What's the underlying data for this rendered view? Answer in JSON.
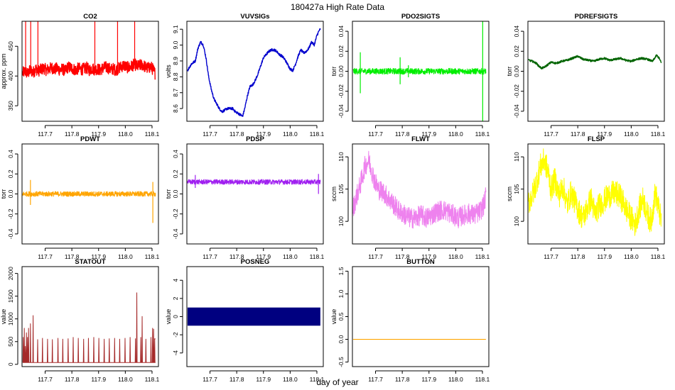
{
  "figure": {
    "suptitle": "180427a   High Rate Data",
    "xlabel": "day of year",
    "xticks": [
      117.7,
      117.8,
      117.9,
      118.0,
      118.1
    ],
    "xtick_labels": [
      "117.7",
      "117.8",
      "117.9",
      "118.0",
      "118.1"
    ],
    "xlim": [
      117.6135,
      118.124
    ]
  },
  "chart_data": [
    {
      "id": "co2",
      "type": "line",
      "title": "CO2",
      "ylabel": "approx. ppm",
      "ylim": [
        324,
        492
      ],
      "yticks": [
        350,
        400,
        450
      ],
      "ytick_labels": [
        "350",
        "400",
        "450"
      ],
      "color": "#ff0000",
      "series": [
        {
          "name": "CO2",
          "x": [
            117.616,
            117.625,
            117.635,
            117.645,
            117.655,
            117.665,
            117.675,
            117.685,
            117.695,
            117.705,
            117.715,
            117.725,
            117.735,
            117.745,
            117.755,
            117.765,
            117.775,
            117.785,
            117.795,
            117.805,
            117.815,
            117.825,
            117.835,
            117.845,
            117.855,
            117.865,
            117.875,
            117.885,
            117.895,
            117.905,
            117.915,
            117.925,
            117.935,
            117.945,
            117.955,
            117.965,
            117.975,
            117.985,
            117.995,
            118.005,
            118.015,
            118.025,
            118.035,
            118.045,
            118.055,
            118.065,
            118.075,
            118.085,
            118.095,
            118.105,
            118.112
          ],
          "values": [
            405,
            408,
            404,
            410,
            406,
            412,
            409,
            411,
            413,
            410,
            412,
            414,
            411,
            413,
            410,
            412,
            408,
            415,
            414,
            412,
            410,
            413,
            411,
            412,
            414,
            410,
            413,
            411,
            412,
            410,
            413,
            415,
            414,
            411,
            412,
            410,
            413,
            416,
            418,
            415,
            414,
            417,
            420,
            416,
            418,
            419,
            415,
            413,
            416,
            410,
            404
          ]
        }
      ],
      "noise": 10,
      "spikes": [
        {
          "x": 117.627,
          "y": 492
        },
        {
          "x": 117.646,
          "y": 492
        },
        {
          "x": 117.673,
          "y": 492
        },
        {
          "x": 117.886,
          "y": 492
        },
        {
          "x": 117.971,
          "y": 492
        },
        {
          "x": 118.035,
          "y": 492
        }
      ]
    },
    {
      "id": "vuvsigs",
      "type": "line",
      "title": "VUVSIGs",
      "ylabel": "volts",
      "ylim": [
        8.52,
        9.15
      ],
      "yticks": [
        8.6,
        8.7,
        8.8,
        8.9,
        9.0,
        9.1
      ],
      "ytick_labels": [
        "8.6",
        "8.7",
        "8.8",
        "8.9",
        "9.0",
        "9.1"
      ],
      "color": "#0000cd",
      "series": [
        {
          "name": "VUVSIGs",
          "x": [
            117.616,
            117.63,
            117.645,
            117.655,
            117.665,
            117.675,
            117.685,
            117.695,
            117.705,
            117.715,
            117.725,
            117.735,
            117.745,
            117.755,
            117.765,
            117.775,
            117.785,
            117.795,
            117.805,
            117.815,
            117.822,
            117.83,
            117.84,
            117.85,
            117.86,
            117.87,
            117.88,
            117.89,
            117.9,
            117.91,
            117.92,
            117.93,
            117.94,
            117.95,
            117.96,
            117.97,
            117.98,
            117.99,
            118.0,
            118.01,
            118.02,
            118.03,
            118.04,
            118.05,
            118.06,
            118.07,
            118.08,
            118.09,
            118.1,
            118.108,
            118.113
          ],
          "values": [
            8.84,
            8.88,
            8.9,
            8.98,
            9.02,
            9.0,
            8.92,
            8.8,
            8.72,
            8.66,
            8.63,
            8.6,
            8.58,
            8.59,
            8.6,
            8.6,
            8.6,
            8.58,
            8.57,
            8.56,
            8.55,
            8.6,
            8.68,
            8.74,
            8.75,
            8.78,
            8.82,
            8.87,
            8.92,
            8.94,
            8.96,
            8.97,
            8.97,
            8.96,
            8.94,
            8.93,
            8.91,
            8.88,
            8.85,
            8.84,
            8.88,
            8.93,
            8.97,
            8.95,
            8.96,
            8.98,
            9.02,
            9.0,
            9.06,
            9.09,
            9.1
          ]
        }
      ],
      "noise": 0.008,
      "spikes": []
    },
    {
      "id": "pdo2sigts",
      "type": "line",
      "title": "PDO2SIGTS",
      "ylabel": "torr",
      "ylim": [
        -0.05,
        0.05
      ],
      "yticks": [
        -0.04,
        -0.02,
        0.0,
        0.02,
        0.04
      ],
      "ytick_labels": [
        "-0.04",
        "-0.02",
        "0.00",
        "0.02",
        "0.04"
      ],
      "color": "#00ee00",
      "series": [
        {
          "name": "PDO2SIGTS",
          "x": [
            117.616,
            118.113
          ],
          "values": [
            0.0,
            0.0
          ]
        }
      ],
      "noise": 0.003,
      "spikes": [
        {
          "x": 117.643,
          "y": 0.019,
          "y2": -0.022
        },
        {
          "x": 117.792,
          "y": 0.014,
          "y2": -0.013
        },
        {
          "x": 117.823,
          "y": 0.006,
          "y2": -0.006
        },
        {
          "x": 118.101,
          "y": 0.05,
          "y2": -0.05
        }
      ]
    },
    {
      "id": "pdrefsigts",
      "type": "line",
      "title": "PDREFSIGTS",
      "ylabel": "torr",
      "ylim": [
        -0.05,
        0.05
      ],
      "yticks": [
        -0.04,
        -0.02,
        0.0,
        0.02,
        0.04
      ],
      "ytick_labels": [
        "-0.04",
        "-0.02",
        "0.00",
        "0.02",
        "0.04"
      ],
      "color": "#006400",
      "series": [
        {
          "name": "PDREFSIGTS",
          "x": [
            117.616,
            117.63,
            117.645,
            117.655,
            117.665,
            117.675,
            117.69,
            117.7,
            117.72,
            117.74,
            117.76,
            117.78,
            117.8,
            117.82,
            117.84,
            117.86,
            117.88,
            117.9,
            117.92,
            117.94,
            117.96,
            117.98,
            118.0,
            118.02,
            118.04,
            118.06,
            118.08,
            118.095,
            118.105,
            118.113
          ],
          "values": [
            0.011,
            0.01,
            0.008,
            0.005,
            0.003,
            0.004,
            0.007,
            0.009,
            0.008,
            0.01,
            0.011,
            0.013,
            0.015,
            0.012,
            0.011,
            0.01,
            0.012,
            0.013,
            0.011,
            0.012,
            0.013,
            0.011,
            0.01,
            0.012,
            0.013,
            0.012,
            0.01,
            0.016,
            0.013,
            0.008
          ]
        }
      ],
      "noise": 0.001,
      "spikes": []
    },
    {
      "id": "pdwt",
      "type": "line",
      "title": "PDWT",
      "ylabel": "torr",
      "ylim": [
        -0.5,
        0.5
      ],
      "yticks": [
        -0.4,
        -0.2,
        0.0,
        0.2,
        0.4
      ],
      "ytick_labels": [
        "-0.4",
        "-0.2",
        "0.0",
        "0.2",
        "0.4"
      ],
      "color": "#ffa500",
      "series": [
        {
          "name": "PDWT",
          "x": [
            117.616,
            118.113
          ],
          "values": [
            0.0,
            0.0
          ]
        }
      ],
      "noise": 0.025,
      "spikes": [
        {
          "x": 117.645,
          "y": 0.14,
          "y2": -0.11
        },
        {
          "x": 118.103,
          "y": 0.12,
          "y2": -0.29
        }
      ]
    },
    {
      "id": "pdsp",
      "type": "line",
      "title": "PDSP",
      "ylabel": "torr",
      "ylim": [
        -0.5,
        0.5
      ],
      "yticks": [
        -0.4,
        -0.2,
        0.0,
        0.2,
        0.4
      ],
      "ytick_labels": [
        "-0.4",
        "-0.2",
        "0.0",
        "0.2",
        "0.4"
      ],
      "color": "#a020f0",
      "series": [
        {
          "name": "PDSP",
          "x": [
            117.616,
            118.113
          ],
          "values": [
            0.12,
            0.12
          ]
        }
      ],
      "noise": 0.025,
      "spikes": [
        {
          "x": 117.645,
          "y": 0.19,
          "y2": 0.06
        },
        {
          "x": 118.106,
          "y": 0.2,
          "y2": 0.0
        }
      ]
    },
    {
      "id": "flwt",
      "type": "line",
      "title": "FLWT",
      "ylabel": "sccm",
      "ylim": [
        96.5,
        112
      ],
      "yticks": [
        100,
        105,
        110
      ],
      "ytick_labels": [
        "100",
        "105",
        "110"
      ],
      "color": "#ee82ee",
      "series": [
        {
          "name": "FLWT",
          "x": [
            117.616,
            117.63,
            117.645,
            117.66,
            117.675,
            117.685,
            117.695,
            117.71,
            117.73,
            117.75,
            117.77,
            117.79,
            117.81,
            117.83,
            117.85,
            117.87,
            117.89,
            117.91,
            117.93,
            117.95,
            117.97,
            117.99,
            118.01,
            118.03,
            118.05,
            118.07,
            118.09,
            118.105,
            118.113
          ],
          "values": [
            102,
            104,
            106,
            108.5,
            109.5,
            108,
            106.5,
            105,
            104.5,
            103.5,
            102.5,
            101.5,
            101,
            100.5,
            100.5,
            101,
            100.5,
            101,
            101.5,
            101.8,
            101.5,
            101,
            100.5,
            101,
            101.2,
            101,
            101.5,
            102.5,
            104
          ]
        }
      ],
      "noise": 1.6,
      "spikes": []
    },
    {
      "id": "flsp",
      "type": "line",
      "title": "FLSP",
      "ylabel": "sccm",
      "ylim": [
        96.5,
        112
      ],
      "yticks": [
        100,
        105,
        110
      ],
      "ytick_labels": [
        "100",
        "105",
        "110"
      ],
      "color": "#ffff00",
      "series": [
        {
          "name": "FLSP",
          "x": [
            117.616,
            117.63,
            117.645,
            117.66,
            117.675,
            117.69,
            117.7,
            117.715,
            117.73,
            117.745,
            117.76,
            117.775,
            117.79,
            117.805,
            117.82,
            117.835,
            117.85,
            117.865,
            117.88,
            117.895,
            117.91,
            117.925,
            117.94,
            117.955,
            117.97,
            117.985,
            118.0,
            118.015,
            118.03,
            118.045,
            118.06,
            118.075,
            118.09,
            118.105,
            118.113
          ],
          "values": [
            103,
            104,
            106,
            108.5,
            109.5,
            107.5,
            105,
            106.5,
            104,
            105.5,
            102.5,
            104.5,
            103,
            101.5,
            100.5,
            102,
            103.5,
            101,
            102.5,
            103,
            103.8,
            104.2,
            104.4,
            104,
            103,
            101.5,
            100.5,
            99.5,
            102,
            103.5,
            101,
            100,
            104.5,
            101.5,
            100
          ]
        }
      ],
      "noise": 2.0,
      "spikes": []
    },
    {
      "id": "statout",
      "type": "line",
      "title": "STATOUT",
      "ylabel": "value",
      "ylim": [
        -50,
        2150
      ],
      "yticks": [
        0,
        500,
        1000,
        1500,
        2000
      ],
      "ytick_labels": [
        "0",
        "500",
        "1000",
        "1500",
        "2000"
      ],
      "color": "#a52a2a",
      "series": [
        {
          "name": "STATOUT",
          "x": [
            117.616,
            118.113
          ],
          "values": [
            40,
            40
          ]
        }
      ],
      "noise": 0,
      "spikes": [],
      "pulse_times": [
        117.618,
        117.622,
        117.626,
        117.63,
        117.634,
        117.638,
        117.645,
        117.655,
        117.672,
        117.69,
        117.709,
        117.727,
        117.748,
        117.766,
        117.786,
        117.805,
        117.824,
        117.844,
        117.862,
        117.882,
        117.901,
        117.921,
        117.94,
        117.96,
        117.979,
        117.999,
        118.018,
        118.038,
        118.043,
        118.058,
        118.063,
        118.077,
        118.096,
        118.102,
        118.106,
        118.11
      ],
      "pulse_values": [
        600,
        800,
        400,
        700,
        600,
        800,
        900,
        1080,
        550,
        580,
        560,
        550,
        580,
        560,
        570,
        600,
        580,
        560,
        580,
        600,
        580,
        560,
        570,
        580,
        560,
        580,
        600,
        570,
        1580,
        600,
        1060,
        560,
        600,
        800,
        780,
        560
      ]
    },
    {
      "id": "posneg",
      "type": "area",
      "title": "POSNEG",
      "ylabel": "value",
      "ylim": [
        -5.5,
        5.5
      ],
      "yticks": [
        -4,
        -2,
        0,
        2,
        4
      ],
      "ytick_labels": [
        "-4",
        "-2",
        "0",
        "2",
        "4"
      ],
      "color": "#000080",
      "series": [
        {
          "name": "POSNEG",
          "x": [
            117.616,
            118.113
          ],
          "upper": [
            1,
            1
          ],
          "lower": [
            -1,
            -1
          ]
        }
      ],
      "noise": 0,
      "spikes": []
    },
    {
      "id": "button",
      "type": "line",
      "title": "BUTTON",
      "ylabel": "value",
      "ylim": [
        -0.6,
        1.6
      ],
      "yticks": [
        -0.5,
        0.0,
        0.5,
        1.0,
        1.5
      ],
      "ytick_labels": [
        "-0.5",
        "0.0",
        "0.5",
        "1.0",
        "1.5"
      ],
      "color": "#ffa500",
      "series": [
        {
          "name": "BUTTON",
          "x": [
            117.616,
            118.113
          ],
          "values": [
            0,
            0
          ]
        }
      ],
      "noise": 0,
      "spikes": []
    }
  ]
}
